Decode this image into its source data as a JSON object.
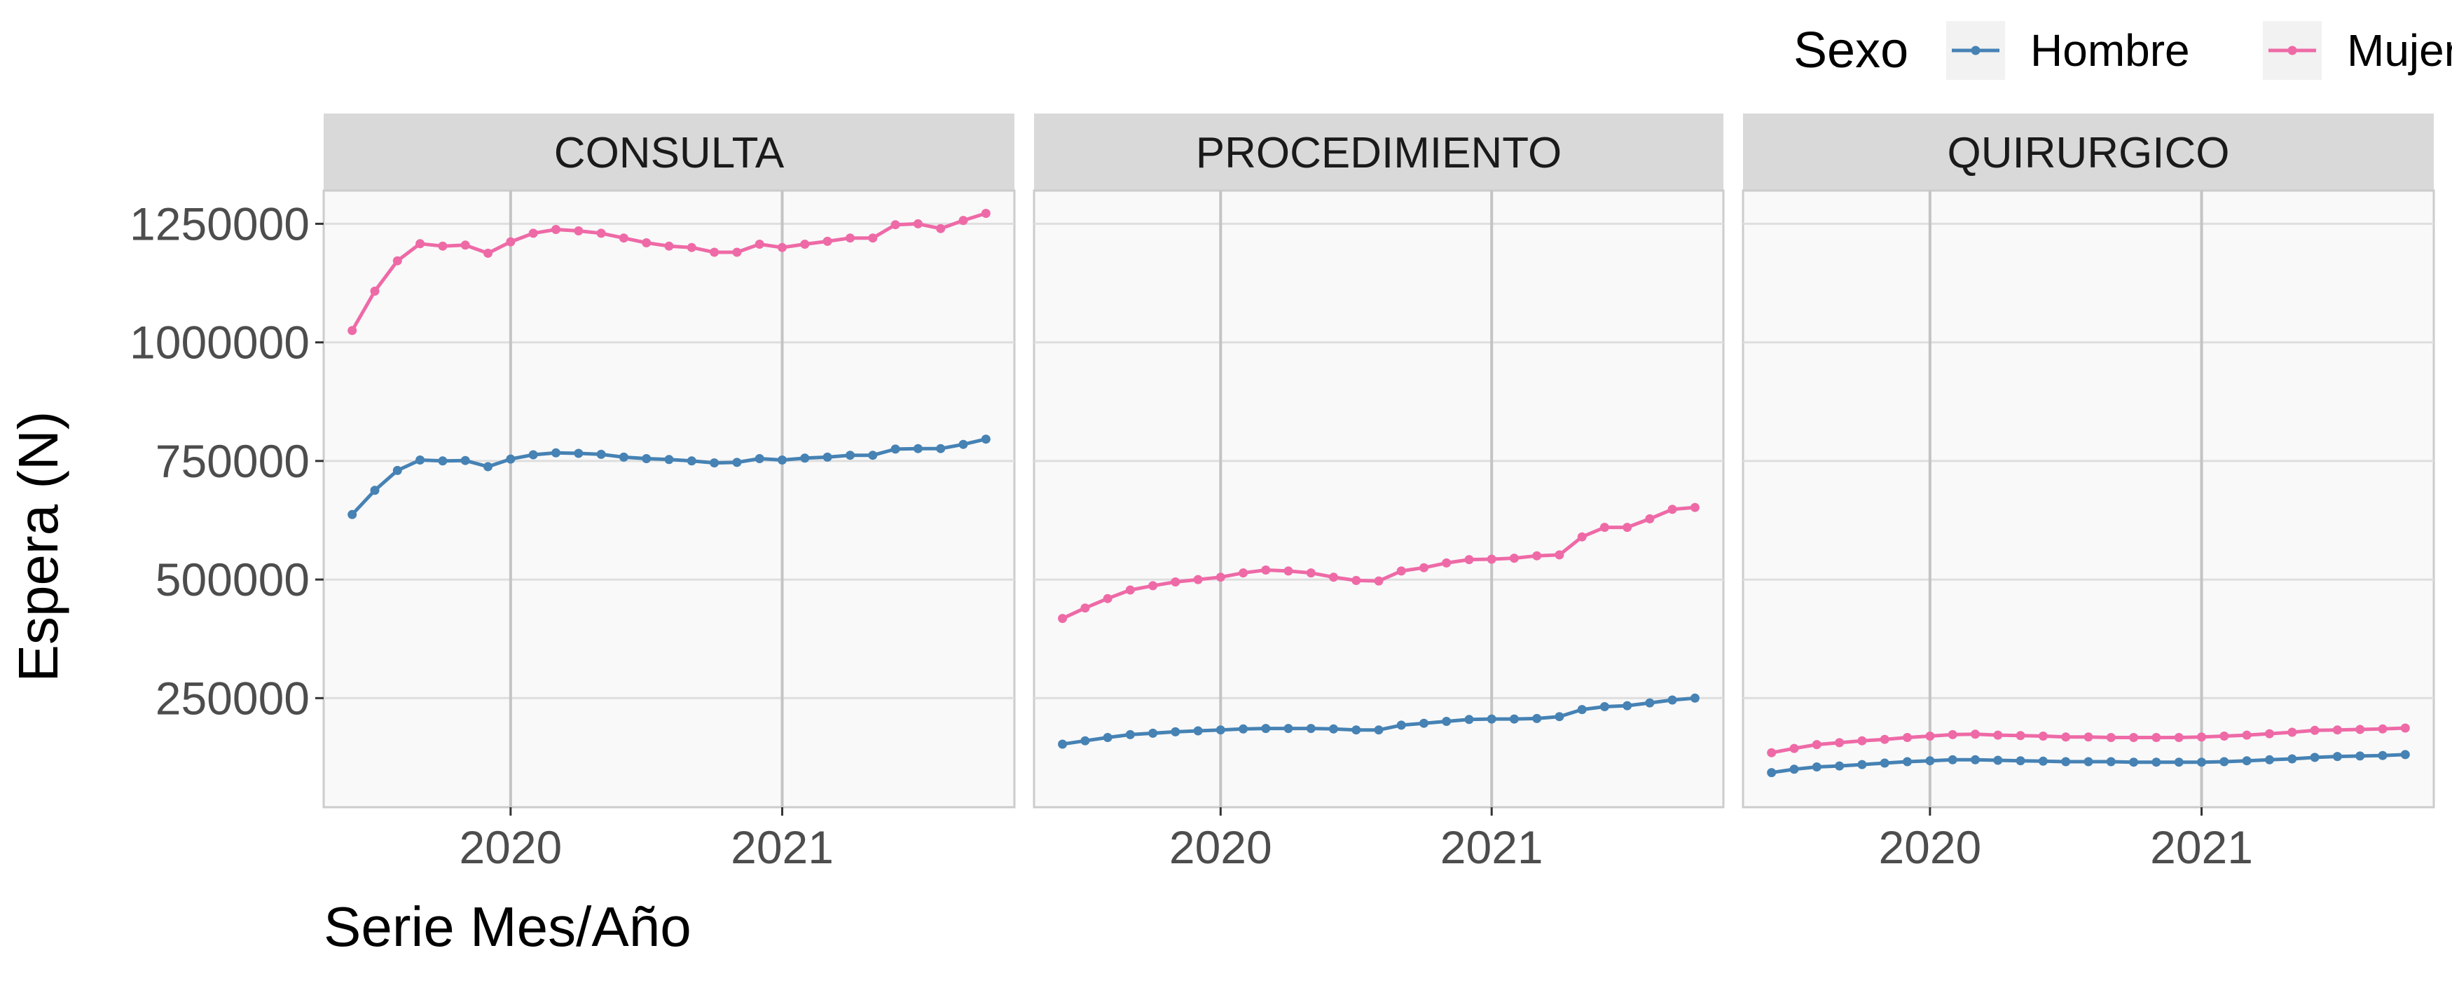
{
  "chart_data": {
    "type": "line",
    "xlabel": "Serie Mes/Año",
    "ylabel": "Espera (N)",
    "x_start": "2019-06",
    "x_end": "2021-10",
    "x_tick_labels": [
      "2020",
      "2021"
    ],
    "x_tick_dates": [
      "2020-01",
      "2021-01"
    ],
    "ylim": [
      20000,
      1320000
    ],
    "y_ticks": [
      250000,
      500000,
      750000,
      1000000,
      1250000
    ],
    "y_tick_labels": [
      "250000",
      "500000",
      "750000",
      "1000000",
      "1250000"
    ],
    "grid": true,
    "legend": {
      "title": "Sexo",
      "position": "top-right",
      "entries": [
        {
          "name": "Hombre",
          "color": "#4682B4"
        },
        {
          "name": "Mujer",
          "color": "#EE6AA7"
        }
      ]
    },
    "x_months": [
      "2019-06",
      "2019-07",
      "2019-08",
      "2019-09",
      "2019-10",
      "2019-11",
      "2019-12",
      "2020-01",
      "2020-02",
      "2020-03",
      "2020-04",
      "2020-05",
      "2020-06",
      "2020-07",
      "2020-08",
      "2020-09",
      "2020-10",
      "2020-11",
      "2020-12",
      "2021-01",
      "2021-02",
      "2021-03",
      "2021-04",
      "2021-05",
      "2021-06",
      "2021-07",
      "2021-08",
      "2021-09",
      "2021-10"
    ],
    "panels": [
      {
        "label": "CONSULTA",
        "series": [
          {
            "name": "Hombre",
            "values": [
              637000,
              688000,
              730000,
              752000,
              750000,
              751000,
              738000,
              754000,
              763000,
              767000,
              766000,
              764000,
              758000,
              755000,
              753000,
              750000,
              746000,
              747000,
              755000,
              752000,
              756000,
              758000,
              762000,
              762000,
              775000,
              776000,
              776000,
              785000,
              796000
            ]
          },
          {
            "name": "Mujer",
            "values": [
              1025000,
              1108000,
              1172000,
              1208000,
              1203000,
              1205000,
              1188000,
              1212000,
              1230000,
              1238000,
              1235000,
              1230000,
              1220000,
              1210000,
              1203000,
              1200000,
              1190000,
              1190000,
              1207000,
              1200000,
              1207000,
              1213000,
              1220000,
              1220000,
              1248000,
              1250000,
              1240000,
              1257000,
              1272000
            ]
          }
        ]
      },
      {
        "label": "PROCEDIMIENTO",
        "series": [
          {
            "name": "Hombre",
            "values": [
              153000,
              160000,
              167000,
              173000,
              176000,
              179000,
              181000,
              183000,
              185000,
              186000,
              186000,
              186000,
              185000,
              183000,
              183000,
              193000,
              197000,
              201000,
              205000,
              206000,
              206000,
              207000,
              211000,
              226000,
              232000,
              234000,
              240000,
              246000,
              250000
            ]
          },
          {
            "name": "Mujer",
            "values": [
              418000,
              440000,
              460000,
              478000,
              487000,
              495000,
              500000,
              505000,
              514000,
              520000,
              518000,
              514000,
              505000,
              498000,
              497000,
              518000,
              525000,
              535000,
              542000,
              543000,
              545000,
              550000,
              552000,
              590000,
              610000,
              610000,
              628000,
              648000,
              652000
            ]
          }
        ]
      },
      {
        "label": "QUIRURGICO",
        "series": [
          {
            "name": "Hombre",
            "values": [
              93000,
              100000,
              105000,
              107000,
              110000,
              113000,
              116000,
              118000,
              120000,
              120000,
              119000,
              118000,
              117000,
              116000,
              116000,
              116000,
              115000,
              115000,
              115000,
              115000,
              116000,
              118000,
              120000,
              122000,
              125000,
              127000,
              128000,
              129000,
              131000
            ]
          },
          {
            "name": "Mujer",
            "values": [
              135000,
              144000,
              152000,
              156000,
              160000,
              163000,
              167000,
              170000,
              173000,
              174000,
              172000,
              171000,
              170000,
              168000,
              168000,
              167000,
              167000,
              167000,
              167000,
              168000,
              170000,
              172000,
              175000,
              178000,
              182000,
              183000,
              184000,
              185000,
              187000
            ]
          }
        ]
      }
    ]
  }
}
